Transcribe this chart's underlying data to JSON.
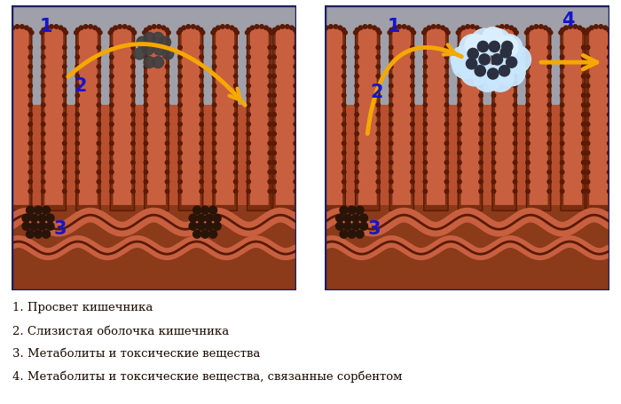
{
  "bg_color": "#ffffff",
  "lumen_bg": "#a8a8b0",
  "lumen_stripe": "#c0c0c8",
  "villi_outer": "#7a2e10",
  "villi_inner": "#b85030",
  "villi_center": "#c86840",
  "villi_border": "#5a1a05",
  "between_villi": "#b05030",
  "bottom_bg": "#8B3A1A",
  "wave_dark": "#5a1a05",
  "particle_dark": "#2a1a10",
  "particle_gray": "#505050",
  "particle_light_blue": "#a8d8f0",
  "particle_blue_bg": "#d0eeff",
  "arrow_color": "#f5a800",
  "label_color": "#1515cc",
  "text_color": "#1a0a00",
  "border_color": "#1a2060",
  "legend_items": [
    "1. Просвет кишечника",
    "2. Слизистая оболочка кишечника",
    "3. Метаболиты и токсические вещества",
    "4. Метаболиты и токсические вещества, связанные сорбентом"
  ]
}
